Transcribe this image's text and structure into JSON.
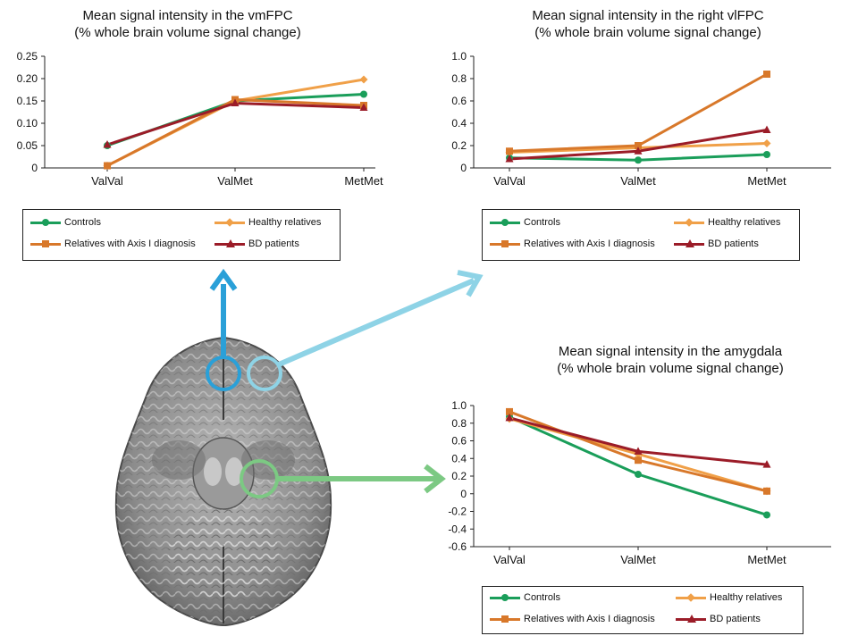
{
  "colors": {
    "Controls": "#1a9e5a",
    "Healthy relatives": "#f0a048",
    "Relatives with Axis I diagnosis": "#d8782a",
    "BD patients": "#9b1c28",
    "arrow_vmfpc": "#2aa0d8",
    "arrow_vlfpc": "#8ed3e6",
    "arrow_amygdala": "#7cc983"
  },
  "chart_data": [
    {
      "type": "line",
      "title": "Mean signal intensity in the vmFPC",
      "subtitle": "(% whole brain volume signal change)",
      "categories": [
        "ValVal",
        "ValMet",
        "MetMet"
      ],
      "ylim": [
        0,
        0.25
      ],
      "yticks": [
        "0",
        "0.05",
        "0.10",
        "0.15",
        "0.20",
        "0.25"
      ],
      "series": [
        {
          "name": "Controls",
          "values": [
            0.05,
            0.15,
            0.165
          ]
        },
        {
          "name": "Healthy relatives",
          "values": [
            0.005,
            0.15,
            0.198
          ]
        },
        {
          "name": "Relatives with Axis I diagnosis",
          "values": [
            0.005,
            0.153,
            0.14
          ]
        },
        {
          "name": "BD patients",
          "values": [
            0.052,
            0.145,
            0.135
          ]
        }
      ]
    },
    {
      "type": "line",
      "title": "Mean signal intensity in the right vlFPC",
      "subtitle": "(% whole brain volume signal change)",
      "categories": [
        "ValVal",
        "ValMet",
        "MetMet"
      ],
      "ylim": [
        0,
        1.0
      ],
      "yticks": [
        "0",
        "0.2",
        "0.4",
        "0.6",
        "0.8",
        "1.0"
      ],
      "series": [
        {
          "name": "Controls",
          "values": [
            0.09,
            0.07,
            0.12
          ]
        },
        {
          "name": "Healthy relatives",
          "values": [
            0.14,
            0.18,
            0.22
          ]
        },
        {
          "name": "Relatives with Axis I diagnosis",
          "values": [
            0.15,
            0.2,
            0.84
          ]
        },
        {
          "name": "BD patients",
          "values": [
            0.08,
            0.15,
            0.34
          ]
        }
      ]
    },
    {
      "type": "line",
      "title": "Mean signal intensity in the amygdala",
      "subtitle": "(% whole brain volume signal change)",
      "categories": [
        "ValVal",
        "ValMet",
        "MetMet"
      ],
      "ylim": [
        -0.6,
        1.0
      ],
      "yticks": [
        "-0.6",
        "-0.4",
        "-0.2",
        "0",
        "0.2",
        "0.4",
        "0.6",
        "0.8",
        "1.0"
      ],
      "series": [
        {
          "name": "Controls",
          "values": [
            0.87,
            0.22,
            -0.24
          ]
        },
        {
          "name": "Healthy relatives",
          "values": [
            0.85,
            0.45,
            0.03
          ]
        },
        {
          "name": "Relatives with Axis I diagnosis",
          "values": [
            0.93,
            0.38,
            0.03
          ]
        },
        {
          "name": "BD patients",
          "values": [
            0.86,
            0.48,
            0.33
          ]
        }
      ]
    }
  ],
  "legend": {
    "items": [
      "Controls",
      "Healthy relatives",
      "Relatives with Axis I diagnosis",
      "BD patients"
    ]
  }
}
